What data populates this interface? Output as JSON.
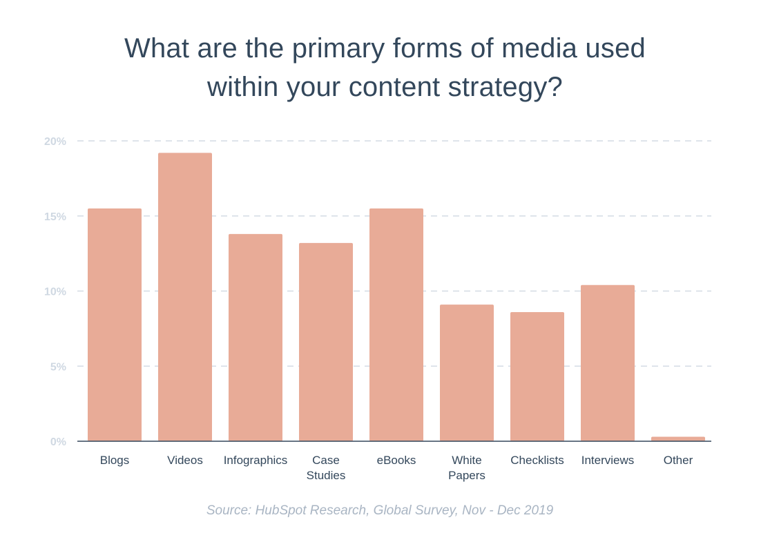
{
  "chart_data": {
    "type": "bar",
    "title": "What are the primary forms of media used within your content strategy?",
    "title_lines": [
      "What are the primary forms of media used",
      "within your content strategy?"
    ],
    "categories": [
      "Blogs",
      "Videos",
      "Infographics",
      "Case Studies",
      "eBooks",
      "White Papers",
      "Checklists",
      "Interviews",
      "Other"
    ],
    "category_label_lines": [
      [
        "Blogs"
      ],
      [
        "Videos"
      ],
      [
        "Infographics"
      ],
      [
        "Case",
        "Studies"
      ],
      [
        "eBooks"
      ],
      [
        "White",
        "Papers"
      ],
      [
        "Checklists"
      ],
      [
        "Interviews"
      ],
      [
        "Other"
      ]
    ],
    "values": [
      15.5,
      19.2,
      13.8,
      13.2,
      15.5,
      9.1,
      8.6,
      10.4,
      0.3
    ],
    "ylim": [
      0,
      20
    ],
    "yticks": [
      0,
      5,
      10,
      15,
      20
    ],
    "ytick_labels": [
      "0%",
      "5%",
      "10%",
      "15%",
      "20%"
    ],
    "grid": true,
    "bar_color": "#e8ab97",
    "xlabel": "",
    "ylabel": ""
  },
  "source": "Source: HubSpot Research, Global Survey, Nov - Dec 2019"
}
